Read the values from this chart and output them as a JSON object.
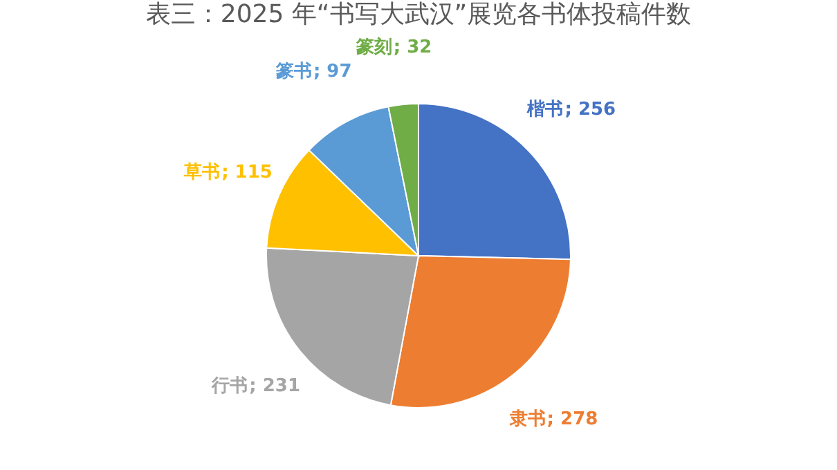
{
  "chart_data": {
    "type": "pie",
    "title": "表三：2025 年“书写大武汉”展览各书体投稿件数",
    "categories": [
      "楷书",
      "隶书",
      "行书",
      "草书",
      "篆书",
      "篆刻"
    ],
    "values": [
      256,
      278,
      231,
      115,
      97,
      32
    ],
    "colors": [
      "#4472c4",
      "#ed7d31",
      "#a5a5a5",
      "#ffc000",
      "#5b9bd5",
      "#70ad47"
    ],
    "value_labels": [
      "; 256",
      "; 278",
      "; 231",
      "; 115",
      "; 97",
      "; 32"
    ]
  }
}
